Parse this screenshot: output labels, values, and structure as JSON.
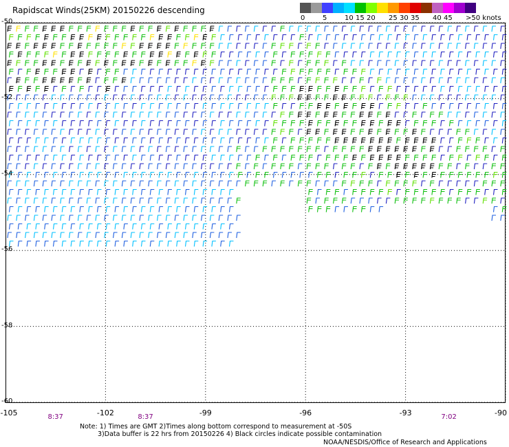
{
  "title": "Rapidscat Winds(25KM) 20150226 descending",
  "legend": {
    "unit": "knots",
    "bins": [
      {
        "label": "0",
        "color": "#555555"
      },
      {
        "label": "",
        "color": "#9a9a9a"
      },
      {
        "label": "5",
        "color": "#4040ff"
      },
      {
        "label": "",
        "color": "#00b0ff"
      },
      {
        "label": "10",
        "color": "#00e0ff"
      },
      {
        "label": "15",
        "color": "#00c000"
      },
      {
        "label": "20",
        "color": "#80ff00"
      },
      {
        "label": "",
        "color": "#ffe000"
      },
      {
        "label": "25",
        "color": "#ff9900"
      },
      {
        "label": "30",
        "color": "#ff4000"
      },
      {
        "label": "35",
        "color": "#e00000"
      },
      {
        "label": "",
        "color": "#8a3000"
      },
      {
        "label": "40",
        "color": "#c060c0"
      },
      {
        "label": "45",
        "color": "#ff00ff"
      },
      {
        "label": "",
        "color": "#a000d0"
      },
      {
        "label": ">50 knots",
        "color": "#400080"
      }
    ]
  },
  "map": {
    "lon_range": [
      -105,
      -90
    ],
    "lat_range": [
      -60,
      -50
    ],
    "lat_labels": [
      "-50",
      "-52",
      "-54",
      "-56",
      "-58",
      "-60"
    ],
    "lon_labels": [
      "-105",
      "-102",
      "-99",
      "-96",
      "-93",
      "-90"
    ],
    "pass_times": [
      {
        "time": "8:37",
        "lon": -103.5
      },
      {
        "time": "8:37",
        "lon": -100.8
      },
      {
        "time": "7:02",
        "lon": -91.7
      }
    ]
  },
  "notes": {
    "line1": "Note: 1) Times are GMT 2)Times along bottom correspond to measurement at -50S",
    "line2": "3)Data buffer is 22 hrs from 20150226 4) Black circles indicate possible contamination",
    "credit": "NOAA/NESDIS/Office of Research and Applications"
  },
  "wind_color_key": {
    "black": "#000000",
    "navy": "#2020c0",
    "blue": "#1e5fe0",
    "cyan": "#00c0ff",
    "green": "#10c010",
    "lime": "#60e000",
    "yellow": "#ffe000"
  }
}
